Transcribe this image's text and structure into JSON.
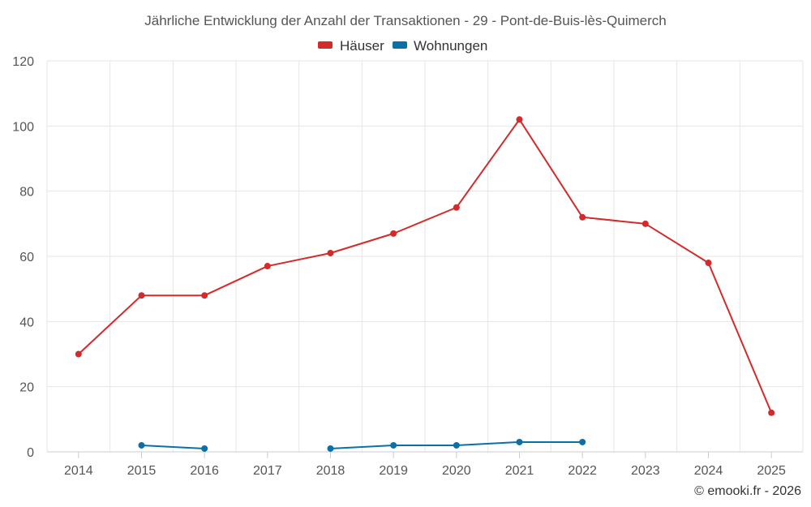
{
  "chart_data": {
    "type": "line",
    "title": "Jährliche Entwicklung der Anzahl der Transaktionen - 29 - Pont-de-Buis-lès-Quimerch",
    "categories": [
      "2014",
      "2015",
      "2016",
      "2017",
      "2018",
      "2019",
      "2020",
      "2021",
      "2022",
      "2023",
      "2024",
      "2025"
    ],
    "ylim": [
      0,
      120
    ],
    "yticks": [
      0,
      20,
      40,
      60,
      80,
      100,
      120
    ],
    "grid": true,
    "legend_position": "top-center",
    "series": [
      {
        "name": "Häuser",
        "color": "#d32b2b",
        "values": [
          30,
          48,
          48,
          57,
          61,
          67,
          75,
          102,
          72,
          70,
          58,
          12
        ]
      },
      {
        "name": "Wohnungen",
        "color": "#0b6fa8",
        "values": [
          null,
          2,
          1,
          null,
          1,
          2,
          2,
          3,
          3,
          null,
          null,
          null
        ]
      }
    ],
    "credit": "© emooki.fr - 2026"
  }
}
